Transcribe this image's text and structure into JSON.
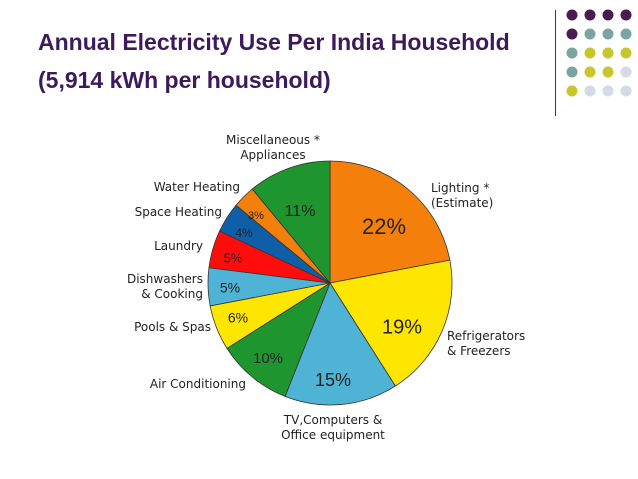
{
  "title_line1": "Annual Electricity Use Per India Household",
  "title_line2": "(5,914 kWh per household)",
  "decor_dot_colors": [
    "#4a1c50",
    "#7aa4a0",
    "#c7c62b",
    "#d7d9e6"
  ],
  "chart_data": {
    "type": "pie",
    "slices": [
      {
        "label_lines": [
          "Lighting *",
          "(Estimate)"
        ],
        "value": 22,
        "pct_label": "22%",
        "color": "#f47f0a"
      },
      {
        "label_lines": [
          "Refrigerators",
          "& Freezers"
        ],
        "value": 19,
        "pct_label": "19%",
        "color": "#ffe600"
      },
      {
        "label_lines": [
          "TV,Computers &",
          "Office equipment"
        ],
        "value": 15,
        "pct_label": "15%",
        "color": "#4fb3d6"
      },
      {
        "label_lines": [
          "Air Conditioning"
        ],
        "value": 10,
        "pct_label": "10%",
        "color": "#1f9530"
      },
      {
        "label_lines": [
          "Pools & Spas"
        ],
        "value": 6,
        "pct_label": "6%",
        "color": "#ffe600"
      },
      {
        "label_lines": [
          "Dishwashers",
          "& Cooking"
        ],
        "value": 5,
        "pct_label": "5%",
        "color": "#4fb3d6"
      },
      {
        "label_lines": [
          "Laundry"
        ],
        "value": 5,
        "pct_label": "5%",
        "color": "#ff0d0d"
      },
      {
        "label_lines": [
          "Space Heating"
        ],
        "value": 4,
        "pct_label": "4%",
        "color": "#0f5fa8"
      },
      {
        "label_lines": [
          "Water Heating"
        ],
        "value": 3,
        "pct_label": "3%",
        "color": "#f47f0a"
      },
      {
        "label_lines": [
          "Miscellaneous *",
          "Appliances"
        ],
        "value": 11,
        "pct_label": "11%",
        "color": "#1f9530"
      }
    ]
  }
}
